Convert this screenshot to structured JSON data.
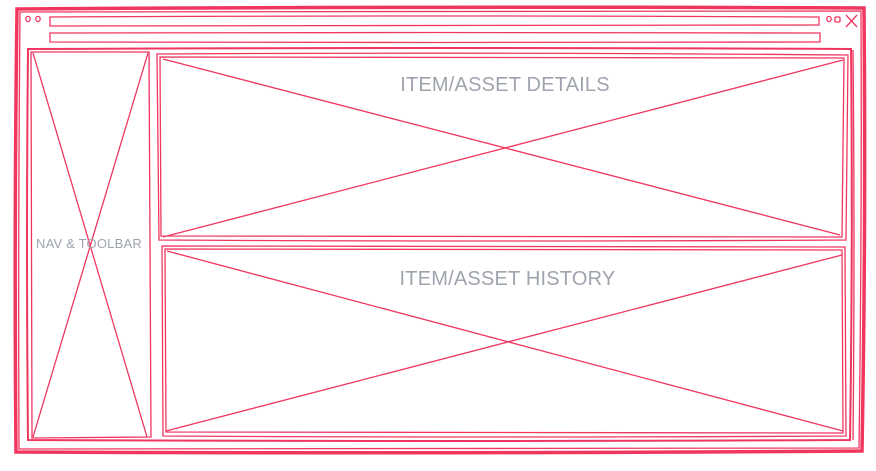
{
  "wireframe": {
    "panels": {
      "details": {
        "label": "ITEM/ASSET DETAILS"
      },
      "history": {
        "label": "ITEM/ASSET HISTORY"
      },
      "nav": {
        "label": "NAV & TOOLBAR"
      }
    },
    "window_controls": {
      "left": [
        "dot",
        "dot"
      ],
      "right": [
        "minimize",
        "maximize",
        "close-icon"
      ]
    },
    "stroke_color": "#f0365f",
    "label_color": "#9ea4ae"
  }
}
